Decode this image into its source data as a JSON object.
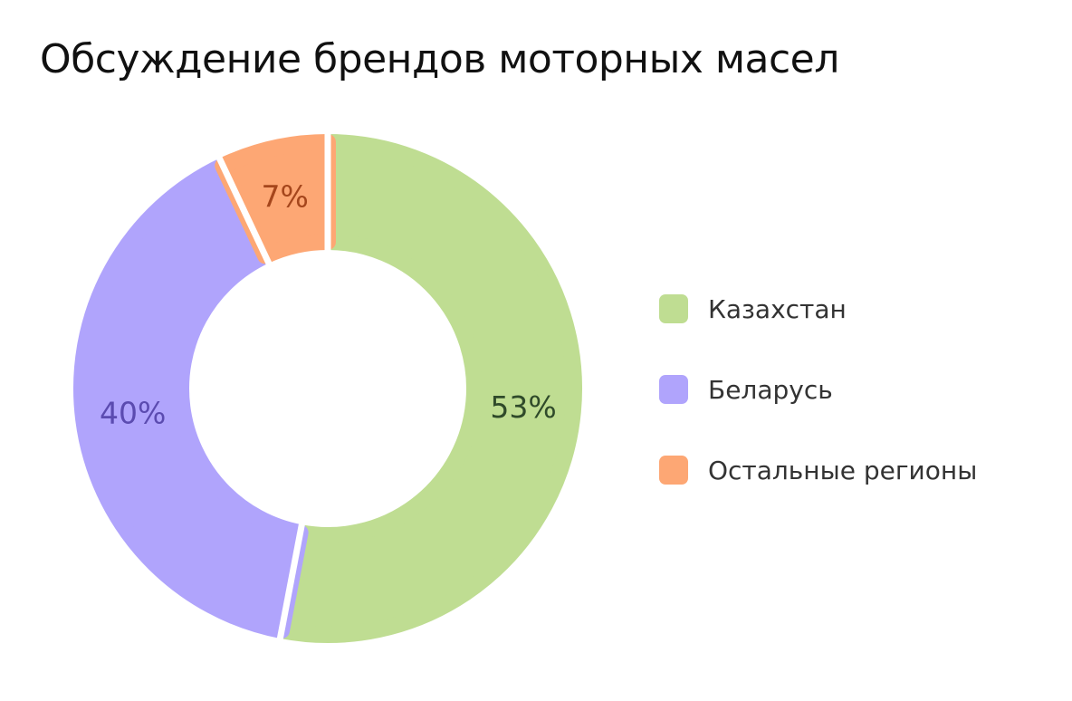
{
  "chart_data": {
    "type": "pie",
    "title": "Обсуждение брендов моторных масел",
    "categories": [
      "Казахстан",
      "Беларусь",
      "Остальные регионы"
    ],
    "values": [
      53,
      40,
      7
    ],
    "value_labels": [
      "53%",
      "40%",
      "7%"
    ],
    "colors": [
      "#bfdd92",
      "#b0a4fc",
      "#fda774"
    ],
    "label_colors": [
      "#2f4a2a",
      "#5b4bb0",
      "#a5461c"
    ],
    "donut": true,
    "legend_position": "right"
  }
}
